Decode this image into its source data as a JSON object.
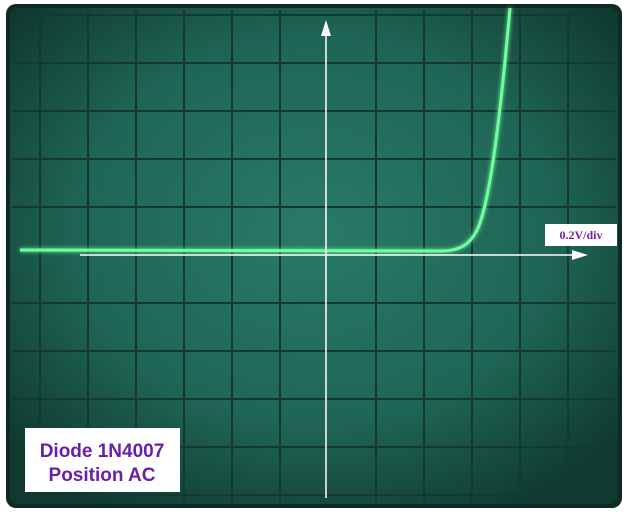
{
  "scale_label": "0.2V/div",
  "caption": {
    "line1": "Diode 1N4007",
    "line2": "Position AC"
  }
}
